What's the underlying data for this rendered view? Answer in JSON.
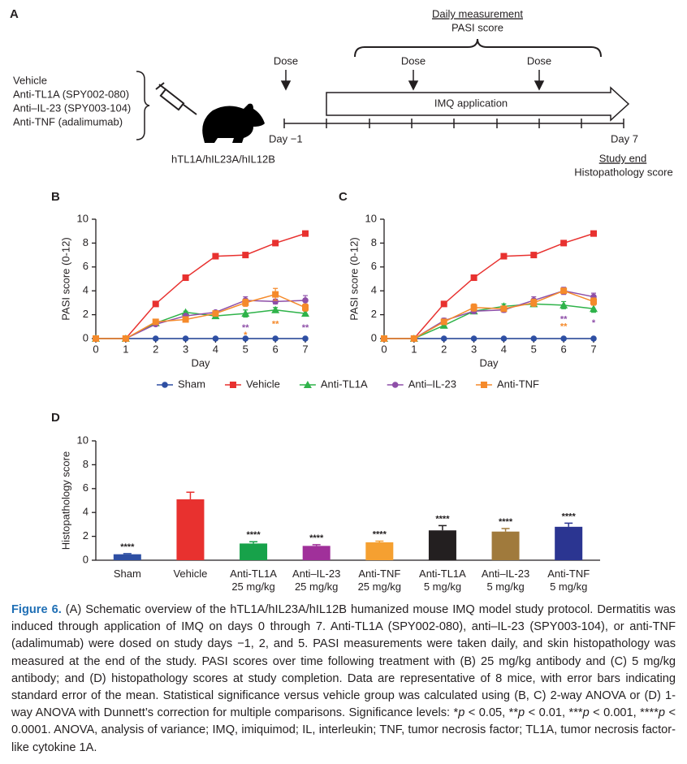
{
  "schematic": {
    "label": "A",
    "treatments": [
      "Vehicle",
      "Anti-TL1A (SPY002-080)",
      "Anti–IL-23 (SPY003-104)",
      "Anti-TNF (adalimumab)"
    ],
    "model": "hTL1A/hIL23A/hIL12B",
    "daily": "Daily measurement",
    "pasi": "PASI score",
    "doses": [
      "Dose",
      "Dose",
      "Dose"
    ],
    "imq": "IMQ application",
    "day_start": "Day −1",
    "day_end": "Day 7",
    "study_end": "Study end",
    "histo": "Histopathology score"
  },
  "chart_data": [
    {
      "type": "line",
      "label": "B",
      "xlabel": "Day",
      "ylabel": "PASI score (0-12)",
      "x": [
        0,
        1,
        2,
        3,
        4,
        5,
        6,
        7
      ],
      "xlim": [
        0,
        7
      ],
      "xticks": [
        0,
        1,
        2,
        3,
        4,
        5,
        6,
        7
      ],
      "ylim": [
        0,
        10
      ],
      "yticks": [
        0,
        2,
        4,
        6,
        8,
        10
      ],
      "series": [
        {
          "name": "Sham",
          "color": "#2e4fa3",
          "marker": "circle",
          "values": [
            0,
            0,
            0,
            0,
            0,
            0,
            0,
            0
          ],
          "errors": [
            0,
            0,
            0,
            0,
            0,
            0,
            0,
            0
          ]
        },
        {
          "name": "Vehicle",
          "color": "#e8312f",
          "marker": "square",
          "values": [
            0,
            0,
            2.9,
            5.1,
            6.9,
            7.0,
            8.0,
            8.8
          ],
          "errors": [
            0,
            0,
            0.1,
            0.1,
            0.1,
            0.1,
            0.1,
            0.1
          ]
        },
        {
          "name": "Anti-TL1A",
          "color": "#2fb34a",
          "marker": "triangle",
          "values": [
            0,
            0,
            1.3,
            2.2,
            1.9,
            2.1,
            2.4,
            2.1
          ],
          "errors": [
            0,
            0,
            0.1,
            0.1,
            0.2,
            0.3,
            0.2,
            0.2
          ]
        },
        {
          "name": "Anti–IL-23",
          "color": "#8e4fa8",
          "marker": "circle",
          "values": [
            0,
            0,
            1.2,
            1.9,
            2.2,
            3.2,
            3.1,
            3.2
          ],
          "errors": [
            0,
            0,
            0.1,
            0.1,
            0.1,
            0.3,
            0.2,
            0.4
          ]
        },
        {
          "name": "Anti-TNF",
          "color": "#f58a2b",
          "marker": "square",
          "values": [
            0,
            0,
            1.4,
            1.6,
            2.1,
            3.0,
            3.7,
            2.6
          ],
          "errors": [
            0,
            0,
            0.1,
            0.2,
            0.2,
            0.3,
            0.5,
            0.3
          ]
        }
      ],
      "annotations": [
        {
          "x": 5,
          "text": "**",
          "color": "#8e4fa8"
        },
        {
          "x": 5,
          "text": "*",
          "color": "#f58a2b"
        },
        {
          "x": 6,
          "text": "**",
          "color": "#f58a2b"
        },
        {
          "x": 7,
          "text": "**",
          "color": "#8e4fa8"
        }
      ]
    },
    {
      "type": "line",
      "label": "C",
      "xlabel": "Day",
      "ylabel": "PASI score (0-12)",
      "x": [
        0,
        1,
        2,
        3,
        4,
        5,
        6,
        7
      ],
      "xlim": [
        0,
        7
      ],
      "xticks": [
        0,
        1,
        2,
        3,
        4,
        5,
        6,
        7
      ],
      "ylim": [
        0,
        10
      ],
      "yticks": [
        0,
        2,
        4,
        6,
        8,
        10
      ],
      "series": [
        {
          "color": "#2e4fa3",
          "marker": "circle",
          "values": [
            0,
            0,
            0,
            0,
            0,
            0,
            0,
            0
          ],
          "errors": [
            0,
            0,
            0,
            0,
            0,
            0,
            0,
            0
          ]
        },
        {
          "color": "#e8312f",
          "marker": "square",
          "values": [
            0,
            0,
            2.9,
            5.1,
            6.9,
            7.0,
            8.0,
            8.8
          ],
          "errors": [
            0,
            0,
            0.1,
            0.1,
            0.1,
            0.1,
            0.1,
            0.1
          ]
        },
        {
          "color": "#2fb34a",
          "marker": "triangle",
          "values": [
            0,
            0,
            1.1,
            2.3,
            2.7,
            2.9,
            2.8,
            2.5
          ],
          "errors": [
            0,
            0,
            0.1,
            0.2,
            0.2,
            0.2,
            0.3,
            0.3
          ]
        },
        {
          "color": "#8e4fa8",
          "marker": "circle",
          "values": [
            0,
            0,
            1.5,
            2.3,
            2.4,
            3.2,
            4.0,
            3.5
          ],
          "errors": [
            0,
            0,
            0.2,
            0.2,
            0.2,
            0.3,
            0.3,
            0.3
          ]
        },
        {
          "color": "#f58a2b",
          "marker": "square",
          "values": [
            0,
            0,
            1.4,
            2.6,
            2.5,
            3.0,
            4.0,
            3.1
          ],
          "errors": [
            0,
            0,
            0.2,
            0.3,
            0.2,
            0.3,
            0.2,
            0.3
          ]
        }
      ],
      "annotations": [
        {
          "x": 6,
          "text": "**",
          "color": "#8e4fa8"
        },
        {
          "x": 6,
          "text": "**",
          "color": "#f58a2b"
        },
        {
          "x": 7,
          "text": "*",
          "color": "#8e4fa8"
        }
      ]
    },
    {
      "type": "bar",
      "label": "D",
      "ylabel": "Histopathology score",
      "categories": [
        "Sham",
        "Vehicle",
        "Anti-TL1A\n25 mg/kg",
        "Anti–IL-23\n25 mg/kg",
        "Anti-TNF\n25 mg/kg",
        "Anti-TL1A\n5 mg/kg",
        "Anti–IL-23\n5 mg/kg",
        "Anti-TNF\n5 mg/kg"
      ],
      "values": [
        0.5,
        5.1,
        1.4,
        1.2,
        1.5,
        2.5,
        2.4,
        2.8
      ],
      "errors": [
        0.05,
        0.6,
        0.15,
        0.1,
        0.1,
        0.4,
        0.25,
        0.3
      ],
      "colors": [
        "#2e4fa3",
        "#e8312f",
        "#17a24a",
        "#a0309a",
        "#f5a031",
        "#231f20",
        "#a07a3c",
        "#2b3591"
      ],
      "annotations": [
        "****",
        null,
        "****",
        "****",
        "****",
        "****",
        "****",
        "****"
      ],
      "ylim": [
        0,
        10
      ],
      "yticks": [
        0,
        2,
        4,
        6,
        8,
        10
      ]
    }
  ],
  "caption": {
    "label": "Figure 6.",
    "parts": [
      "(A) Schematic overview of the hTL1A/hIL23A/hIL12B humanized mouse IMQ model study protocol. Dermatitis was induced through application of IMQ on days 0 through 7. Anti-TL1A (SPY002-080), anti–IL-23 (SPY003-104), or anti-TNF (adalimumab) were dosed on study days −1, 2, and 5. PASI measurements were taken daily, and skin histopathology was measured at the end of the study. PASI scores over time following treatment with (B) 25 mg/kg antibody and (C) 5 mg/kg antibody; and (D) histopathology scores at study completion. Data are representative of 8 mice, with error bars indicating standard error of the mean. Statistical significance versus vehicle group was calculated using (B, C) 2-way ANOVA or (D) 1-way ANOVA with Dunnett’s correction for multiple comparisons. Significance levels: *",
      "p",
      " < 0.05, **",
      "p",
      " < 0.01, ***",
      "p",
      " < 0.001, ****",
      "p",
      " < 0.0001. ANOVA, analysis of variance; IMQ, imiquimod; IL, interleukin; TNF, tumor necrosis factor; TL1A, tumor necrosis factor-like cytokine 1A."
    ]
  }
}
